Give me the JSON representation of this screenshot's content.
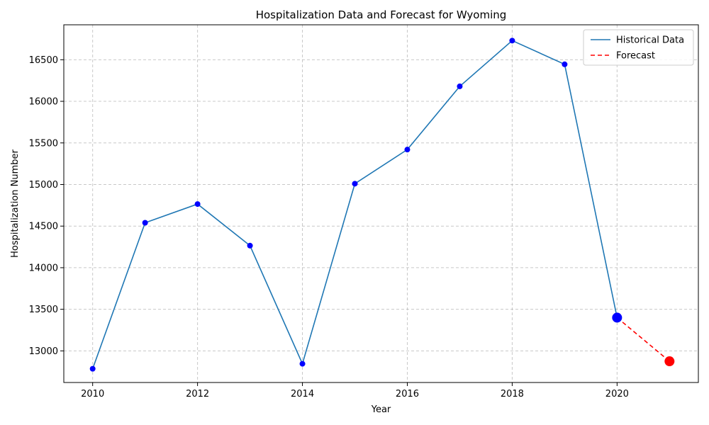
{
  "chart_data": {
    "type": "line",
    "title": "Hospitalization Data and Forecast for Wyoming",
    "xlabel": "Year",
    "ylabel": "Hospitalization Number",
    "xlim": [
      2009.45,
      2021.55
    ],
    "ylim": [
      12620,
      16920
    ],
    "xticks": [
      2010,
      2012,
      2014,
      2016,
      2018,
      2020
    ],
    "yticks": [
      13000,
      13500,
      14000,
      14500,
      15000,
      15500,
      16000,
      16500
    ],
    "grid": true,
    "legend_position": "top-right",
    "series": [
      {
        "name": "Historical Data",
        "style": "solid",
        "color": "#1f77b4",
        "marker_color": "#0000ff",
        "x": [
          2010,
          2011,
          2012,
          2013,
          2014,
          2015,
          2016,
          2017,
          2018,
          2019,
          2020
        ],
        "y": [
          12785,
          14540,
          14765,
          14265,
          12845,
          15010,
          15420,
          16180,
          16730,
          16445,
          13400
        ]
      },
      {
        "name": "Forecast",
        "style": "dashed",
        "color": "#ff0000",
        "marker_color": "#ff0000",
        "x": [
          2020,
          2021
        ],
        "y": [
          13400,
          12875
        ]
      }
    ]
  }
}
